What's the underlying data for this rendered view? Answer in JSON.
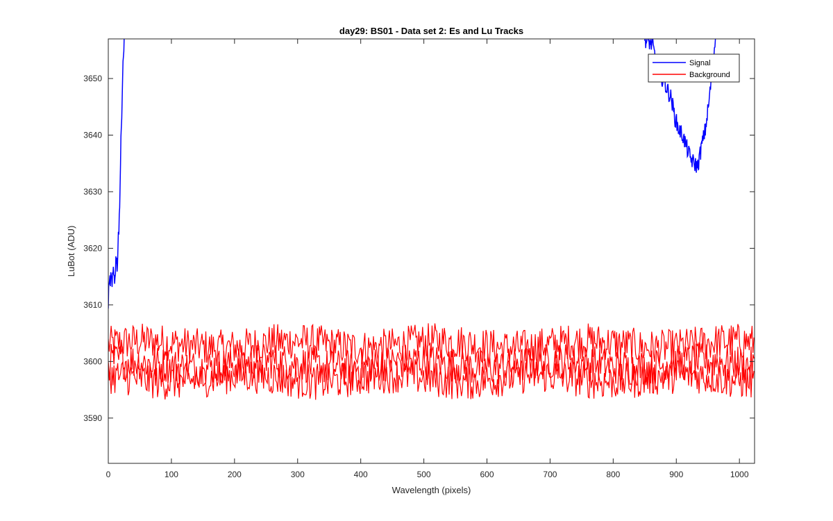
{
  "chart_data": {
    "type": "line",
    "title": "day29: BS01 - Data set 2: Es and Lu Tracks",
    "xlabel": "Wavelength (pixels)",
    "ylabel": "LuBot (ADU)",
    "xlim": [
      0,
      1024
    ],
    "ylim": [
      3582,
      3657
    ],
    "xticks": [
      0,
      100,
      200,
      300,
      400,
      500,
      600,
      700,
      800,
      900,
      1000
    ],
    "yticks": [
      3590,
      3600,
      3610,
      3620,
      3630,
      3640,
      3650
    ],
    "grid": false,
    "legend_position": "top-right",
    "series": [
      {
        "name": "Signal",
        "color": "#0000ff",
        "segments": [
          {
            "x": [
              0,
              2,
              4,
              6,
              8,
              10,
              12,
              14,
              16,
              18,
              20,
              22,
              24,
              26
            ],
            "y": [
              3611,
              3613.5,
              3615,
              3613,
              3616,
              3614.5,
              3618,
              3617,
              3622,
              3628,
              3638,
              3648,
              3655,
              3657
            ]
          },
          {
            "x": [
              850,
              856,
              862,
              868,
              874,
              880,
              886,
              892,
              898,
              904,
              910,
              916,
              922,
              928,
              934,
              940,
              946,
              952,
              958,
              962
            ],
            "y": [
              3657,
              3656.5,
              3656,
              3653,
              3651,
              3649.5,
              3648,
              3646.5,
              3643,
              3641,
              3640,
              3638,
              3636,
              3635,
              3634.5,
              3638,
              3641,
              3646,
              3653,
              3657
            ]
          }
        ]
      },
      {
        "name": "Background",
        "color": "#ff0000",
        "tracks": [
          {
            "center": 3603.0,
            "x_range": [
              0,
              1024
            ]
          },
          {
            "center": 3599.5,
            "x_range": [
              0,
              1024
            ]
          },
          {
            "center": 3597.0,
            "x_range": [
              0,
              1024
            ]
          }
        ],
        "y_range": [
          3592,
          3607.5
        ]
      }
    ]
  }
}
